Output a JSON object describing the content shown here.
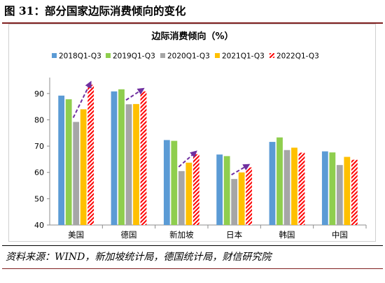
{
  "figure": {
    "title": "图 31：部分国家边际消费倾向的变化",
    "source": "资料来源：WIND，新加坡统计局，德国统计局，财信研究院"
  },
  "colors": {
    "series": [
      "#5B9BD5",
      "#8FCE4E",
      "#A6A6A6",
      "#FFC000",
      "#FF0000"
    ],
    "arrow": "#7030A0",
    "axis": "#8C8C8C",
    "title_rule": "#7F1F1F"
  },
  "chart_data": {
    "type": "bar",
    "title": "边际消费倾向（%）",
    "xlabel": "",
    "ylabel": "",
    "categories": [
      "美国",
      "德国",
      "新加坡",
      "日本",
      "韩国",
      "中国"
    ],
    "yticks": [
      "40",
      "50",
      "60",
      "70",
      "80",
      "90"
    ],
    "ylim": [
      40,
      95
    ],
    "grid": false,
    "legend_position": "top",
    "series": [
      {
        "name": "2018Q1-Q3",
        "values": [
          89.2,
          90.8,
          72.3,
          66.8,
          71.6,
          68.0
        ],
        "pattern": "solid"
      },
      {
        "name": "2019Q1-Q3",
        "values": [
          87.8,
          91.6,
          72.0,
          66.2,
          73.3,
          67.6
        ],
        "pattern": "solid"
      },
      {
        "name": "2020Q1-Q3",
        "values": [
          79.2,
          85.9,
          60.5,
          57.5,
          68.5,
          62.8
        ],
        "pattern": "solid"
      },
      {
        "name": "2021Q1-Q3",
        "values": [
          84.0,
          86.0,
          63.7,
          60.0,
          69.4,
          65.9
        ],
        "pattern": "solid"
      },
      {
        "name": "2022Q1-Q3",
        "values": [
          93.3,
          90.8,
          66.9,
          61.9,
          67.5,
          64.8
        ],
        "pattern": "hatched"
      }
    ],
    "trend_arrows": [
      {
        "category": "美国",
        "from_series": 2,
        "to_series": 4
      },
      {
        "category": "德国",
        "from_series": 2,
        "to_series": 4
      },
      {
        "category": "新加坡",
        "from_series": 2,
        "to_series": 4
      },
      {
        "category": "日本",
        "from_series": 2,
        "to_series": 4
      }
    ]
  }
}
